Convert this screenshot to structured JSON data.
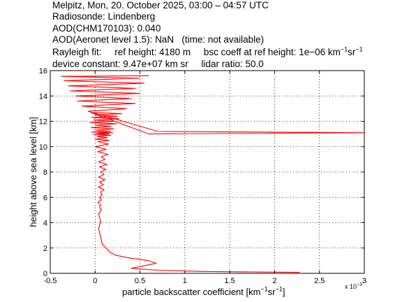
{
  "header": {
    "line1": "Melpitz, Mon, 20. October 2025, 03:00 – 04:57 UTC",
    "line2": "Radiosonde: Lindenberg",
    "line3": "AOD(CHM170103): 0.040",
    "line4": "AOD(Aeronet level 1.5): NaN   (time: not available)",
    "rayleigh": "Rayleigh fit:     ref height: 4180 m     bsc coeff at ref height: 1e−06 km",
    "unit_exp1": "−1",
    "unit_sr": "sr",
    "unit_exp2": "−1",
    "device": "device constant: 9.47e+07 km sr     lidar ratio: 50.0"
  },
  "axis": {
    "xlabel_main": "particle backscatter coefficient [km",
    "xlabel_exp1": "−1",
    "xlabel_sr": "sr",
    "xlabel_exp2": "−1",
    "xlabel_end": "]",
    "multiplier_base": "x 10",
    "multiplier_exp": "−3",
    "ylabel": "height above sea level [km]"
  },
  "chart_data": {
    "type": "line",
    "title": "",
    "xlabel": "particle backscatter coefficient [km⁻¹sr⁻¹] (x 10⁻³)",
    "ylabel": "height above sea level [km]",
    "xlim": [
      -0.5,
      3
    ],
    "ylim": [
      0,
      16
    ],
    "xticks": [
      "-0.5",
      "0",
      "0.5",
      "1",
      "1.5",
      "2",
      "2.5",
      "3"
    ],
    "yticks": [
      "0",
      "2",
      "4",
      "6",
      "8",
      "10",
      "12",
      "14",
      "16"
    ],
    "grid": true,
    "line_color": "#ff0000",
    "series": [
      {
        "x": [
          2.28,
          1.2,
          0.7,
          0.4,
          0.55,
          0.68,
          0.6,
          0.35,
          0.22,
          0.16,
          0.12,
          0.08,
          0.07,
          0.06,
          0.05,
          0.04,
          0.05,
          0.06,
          0.05,
          0.04,
          0.07,
          0.05,
          0.06,
          0.03,
          0.07,
          0.05,
          0.08,
          0.06,
          0.1,
          0.04,
          0.09,
          0.05,
          0.11,
          0.04,
          0.1,
          0.06,
          0.12,
          0.05,
          0.13,
          0.04,
          0.11,
          0.07,
          0.14,
          0.03,
          0.12,
          0.0,
          0.15,
          0.03,
          0.16,
          0.0,
          0.14,
          0.02,
          0.18,
          -0.02,
          0.16,
          0.02,
          0.2,
          -0.04,
          0.18,
          0.0,
          0.21,
          -0.05,
          0.18,
          0.0,
          0.24,
          -0.06,
          0.22,
          -0.02,
          0.27,
          -0.04,
          0.25,
          0.0,
          0.3,
          -0.05,
          0.6,
          3.0,
          0.7,
          -0.08,
          0.35,
          -0.15,
          0.45,
          -0.2,
          0.4,
          -0.22,
          0.5,
          -0.28,
          0.45,
          -0.3,
          0.55,
          -0.35,
          0.5,
          -0.38,
          0.6
        ],
        "y": [
          0.08,
          0.15,
          0.25,
          0.4,
          0.6,
          0.8,
          1.0,
          1.25,
          1.45,
          1.7,
          2.0,
          2.3,
          2.6,
          2.9,
          3.2,
          3.5,
          3.8,
          4.1,
          4.4,
          4.7,
          5.0,
          5.2,
          5.4,
          5.6,
          5.8,
          6.0,
          6.2,
          6.4,
          6.6,
          6.8,
          7.0,
          7.2,
          7.4,
          7.6,
          7.8,
          8.0,
          8.2,
          8.4,
          8.6,
          8.8,
          9.0,
          9.2,
          9.4,
          9.6,
          9.8,
          10.0,
          10.2,
          10.4,
          10.5,
          10.6,
          10.7,
          10.8,
          10.9,
          10.95,
          11.0,
          11.05,
          11.1,
          11.15,
          11.2,
          11.3,
          11.4,
          11.5,
          11.6,
          11.7,
          11.8,
          11.9,
          12.0,
          12.1,
          12.2,
          12.3,
          12.4,
          12.5,
          12.6,
          12.7,
          11.0,
          11.1,
          11.2,
          12.8,
          13.0,
          13.2,
          13.4,
          13.6,
          13.8,
          14.0,
          14.2,
          14.4,
          14.6,
          14.8,
          15.0,
          15.2,
          15.4,
          15.55,
          15.6
        ]
      }
    ]
  }
}
